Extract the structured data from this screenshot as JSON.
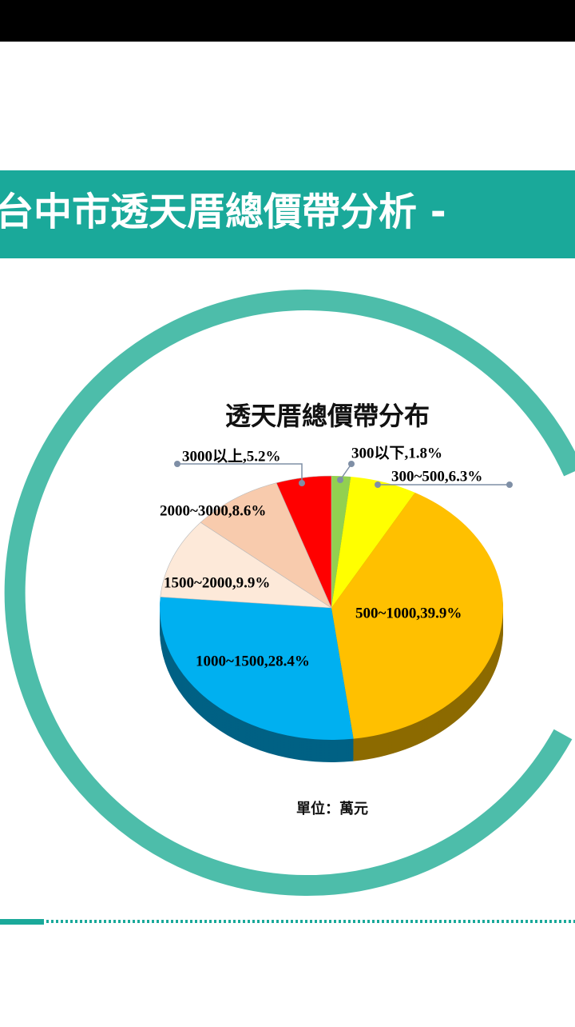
{
  "page_title": "台中市透天厝總價帶分析 -",
  "chart_data": {
    "type": "pie",
    "title": "透天厝總價帶分布",
    "values": [
      1.8,
      6.3,
      39.9,
      28.4,
      9.9,
      8.6,
      5.2
    ],
    "value_labels": [
      "300以下,1.8%",
      "300~500,6.3%",
      "500~1000,39.9%",
      "1000~1500,28.4%",
      "1500~2000,9.9%",
      "2000~3000,8.6%",
      "3000以上,5.2%"
    ],
    "colors": [
      "#92d050",
      "#ffff00",
      "#ffc000",
      "#00b0f0",
      "#fde9d9",
      "#f8cbad",
      "#ff0000"
    ],
    "note": "單位：萬元"
  }
}
